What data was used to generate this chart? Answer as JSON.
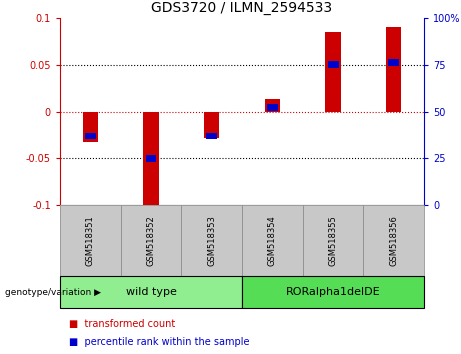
{
  "title": "GDS3720 / ILMN_2594533",
  "samples": [
    "GSM518351",
    "GSM518352",
    "GSM518353",
    "GSM518354",
    "GSM518355",
    "GSM518356"
  ],
  "red_values": [
    -0.032,
    -0.105,
    -0.028,
    0.013,
    0.085,
    0.09
  ],
  "blue_values_pct": [
    37,
    25,
    37,
    52,
    75,
    76
  ],
  "groups": [
    {
      "label": "wild type",
      "samples": [
        0,
        1,
        2
      ],
      "color": "#90EE90"
    },
    {
      "label": "RORalpha1delDE",
      "samples": [
        3,
        4,
        5
      ],
      "color": "#55DD55"
    }
  ],
  "ylim_left": [
    -0.1,
    0.1
  ],
  "ylim_right": [
    0,
    100
  ],
  "yticks_left": [
    -0.1,
    -0.05,
    0,
    0.05,
    0.1
  ],
  "yticks_right": [
    0,
    25,
    50,
    75,
    100
  ],
  "hlines_dotted": [
    0.05,
    -0.05
  ],
  "hline_zero_color": "#CC0000",
  "left_color": "#CC0000",
  "right_color": "#0000CC",
  "bar_width": 0.25,
  "blue_bar_width": 0.18,
  "blue_bar_height": 0.007,
  "genotype_label": "genotype/variation",
  "legend_red": "transformed count",
  "legend_blue": "percentile rank within the sample",
  "background_color": "#FFFFFF",
  "sample_box_color": "#C8C8C8",
  "sample_box_edge": "#888888"
}
